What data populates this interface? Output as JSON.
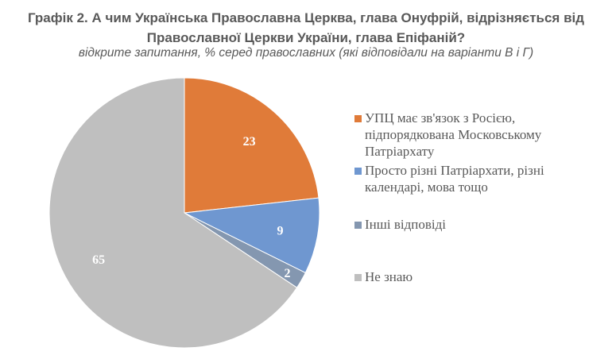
{
  "chart_data": {
    "type": "pie",
    "title": "Графік 2. А чим Українська Православна Церква, глава Онуфрій, відрізняється від Православної Церкви України, глава Епіфаній?",
    "subtitle": "відкрите запитання, % серед православних (які відповідали на варіанти В і Г)",
    "legend_position": "right",
    "slices": [
      {
        "label": "УПЦ має зв'язок з Росією, підпорядкована Московському Патріархату",
        "value": 23,
        "value_label": "23",
        "color": "#E07B39"
      },
      {
        "label": "Просто різні Патріархати, різні календарі, мова тощо",
        "value": 9,
        "value_label": "9",
        "color": "#6F97D0"
      },
      {
        "label": "Інші відповіді",
        "value": 2,
        "value_label": "2",
        "color": "#8497B0"
      },
      {
        "label": "Не знаю",
        "value": 65,
        "value_label": "65",
        "color": "#BFBFBF"
      }
    ]
  }
}
